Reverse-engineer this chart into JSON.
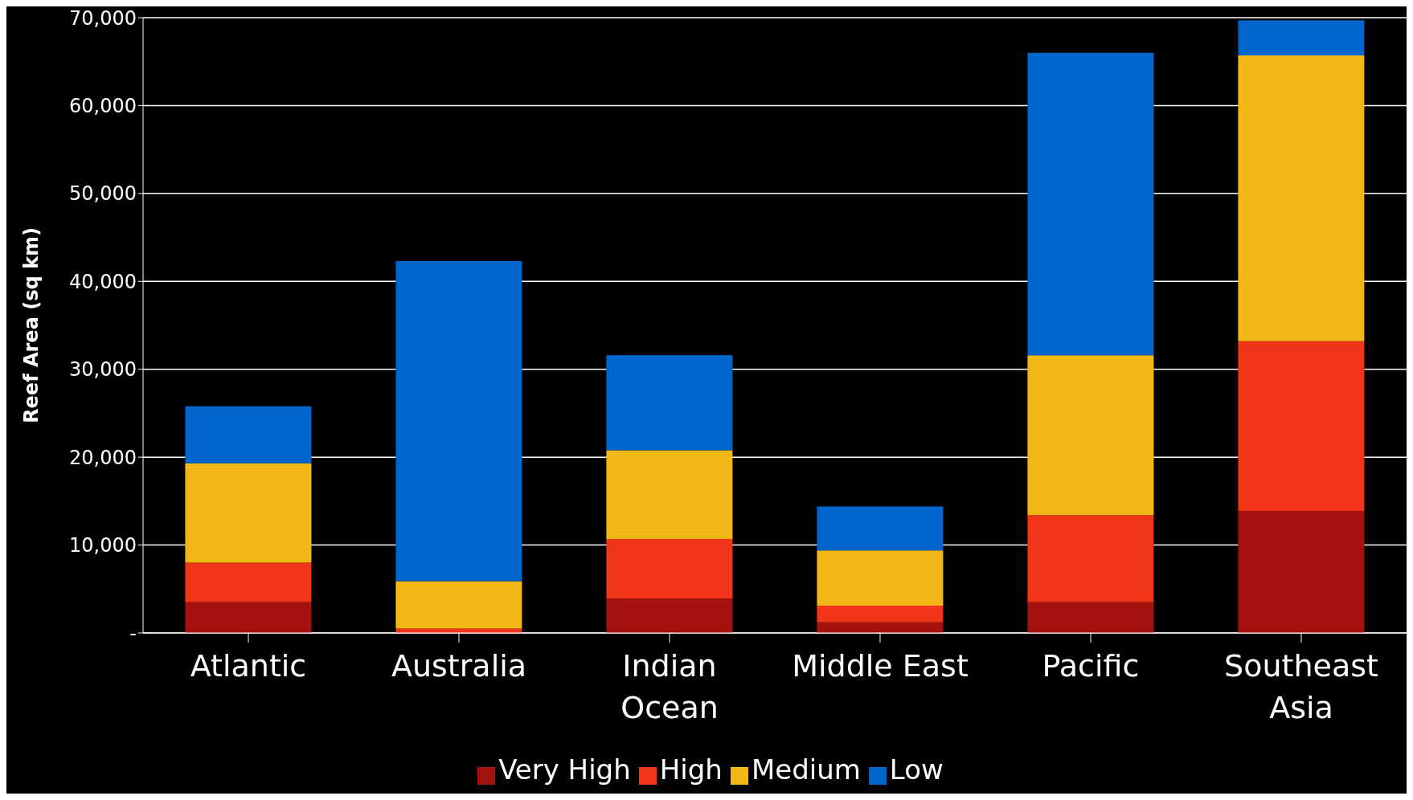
{
  "chart_data": {
    "type": "bar",
    "stacked": true,
    "ylabel": "Reef Area (sq km)",
    "categories": [
      "Atlantic",
      "Australia",
      "Indian Ocean",
      "Middle East",
      "Pacific",
      "Southeast Asia"
    ],
    "series": [
      {
        "name": "Very High",
        "color": "#a4120f",
        "values": [
          3500,
          0,
          3900,
          1200,
          3500,
          13900
        ]
      },
      {
        "name": "High",
        "color": "#f03518",
        "values": [
          4500,
          500,
          6800,
          1900,
          9900,
          19300
        ]
      },
      {
        "name": "Medium",
        "color": "#f2b815",
        "values": [
          11300,
          5400,
          10100,
          6300,
          18200,
          32500
        ]
      },
      {
        "name": "Low",
        "color": "#0066cc",
        "values": [
          6500,
          36400,
          10800,
          5000,
          34400,
          4000
        ]
      }
    ],
    "ylim": [
      0,
      70000
    ],
    "yticks": [
      {
        "value": 0,
        "label": "-"
      },
      {
        "value": 10000,
        "label": "10,000"
      },
      {
        "value": 20000,
        "label": "20,000"
      },
      {
        "value": 30000,
        "label": "30,000"
      },
      {
        "value": 40000,
        "label": "40,000"
      },
      {
        "value": 50000,
        "label": "50,000"
      },
      {
        "value": 60000,
        "label": "60,000"
      },
      {
        "value": 70000,
        "label": "70,000"
      }
    ],
    "grid": "y",
    "legend": "bottom"
  }
}
